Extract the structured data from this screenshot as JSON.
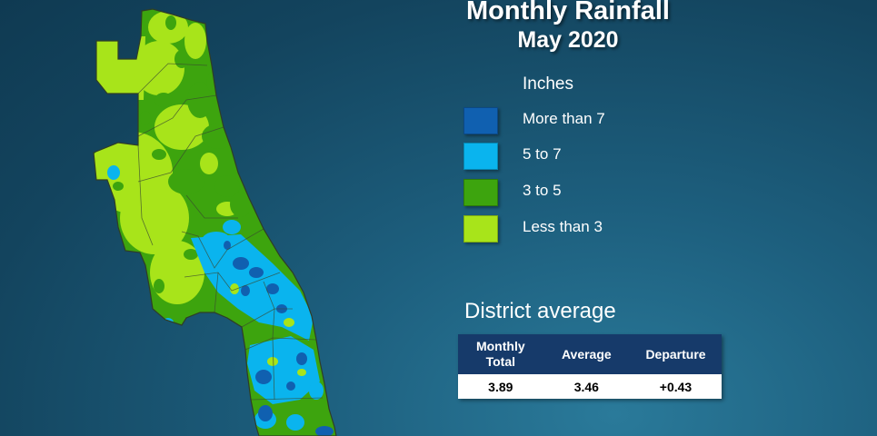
{
  "title": "Monthly Rainfall",
  "subtitle": "May 2020",
  "legend": {
    "title": "Inches",
    "items": [
      {
        "label": "More than 7",
        "color": "#1060b0"
      },
      {
        "label": "5 to 7",
        "color": "#0ab4ee"
      },
      {
        "label": "3 to 5",
        "color": "#3da40e"
      },
      {
        "label": "Less than 3",
        "color": "#a8e41a"
      }
    ]
  },
  "district_average": {
    "title": "District average",
    "headers": [
      "Monthly Total",
      "Average",
      "Departure"
    ],
    "values": [
      "3.89",
      "3.46",
      "+0.43"
    ]
  },
  "colors": {
    "background": "#13445e",
    "table_header": "#163a6a",
    "county_border": "#3a4a30"
  }
}
